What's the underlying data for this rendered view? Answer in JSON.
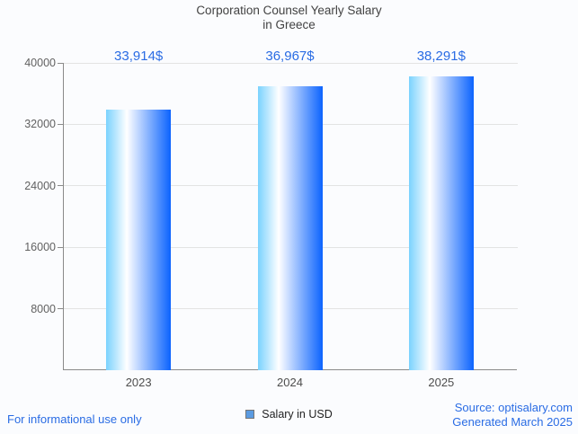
{
  "title": {
    "line1": "Corporation Counsel Yearly Salary",
    "line2": "in Greece"
  },
  "chart_data": {
    "type": "bar",
    "categories": [
      "2023",
      "2024",
      "2025"
    ],
    "values": [
      33914,
      36967,
      38291
    ],
    "value_labels": [
      "33,914$",
      "36,967$",
      "38,291$"
    ],
    "series": [
      {
        "name": "Salary in USD",
        "values": [
          33914,
          36967,
          38291
        ]
      }
    ],
    "title": "Corporation Counsel Yearly Salary in Greece",
    "xlabel": "",
    "ylabel": "",
    "ylim": [
      0,
      40000
    ],
    "yticks": [
      8000,
      16000,
      24000,
      32000,
      40000
    ],
    "ytick_labels": [
      "8000",
      "16000",
      "24000",
      "32000",
      "40000"
    ],
    "grid": true,
    "legend_position": "bottom"
  },
  "legend": {
    "label": "Salary in USD"
  },
  "footer": {
    "disclaimer": "For informational use only",
    "source": "Source: optisalary.com",
    "generated": "Generated March 2025"
  },
  "colors": {
    "accent_blue": "#2a6ce4",
    "bar_gradient_left": "#7ad2fe",
    "bar_gradient_mid": "#ffffff",
    "bar_gradient_right": "#0b63fe",
    "legend_swatch": "#5b9be1",
    "axis_line": "#8a8a8a",
    "gridline": "#e3e3e3",
    "title_text": "#424242",
    "ytick_text": "#616161",
    "xtick_text": "#4d4d4d"
  }
}
